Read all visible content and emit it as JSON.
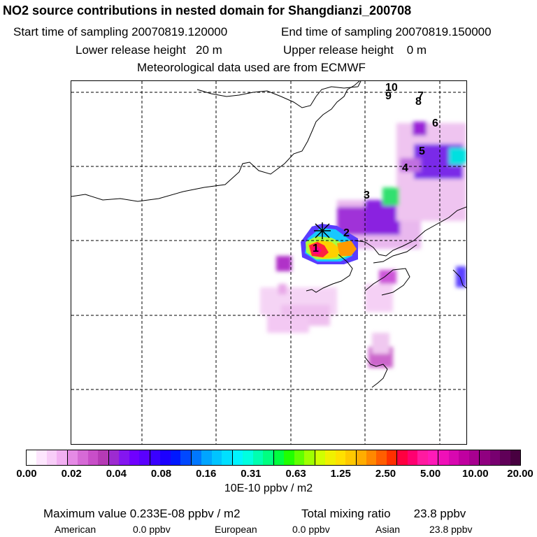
{
  "title": "NO2 source contributions in nested domain for Shangdianzi_200708",
  "sampling": {
    "start": "Start time of sampling 20070819.120000",
    "end": "End time of sampling 20070819.150000"
  },
  "release": {
    "lower": "Lower release height   20 m",
    "upper": "Upper release height    0 m"
  },
  "met": "Meteorological data used are from ECMWF",
  "map": {
    "trajectory_labels": [
      "1",
      "2",
      "3",
      "4",
      "5",
      "6",
      "7",
      "8",
      "9",
      "10"
    ],
    "station_marker": "star-icon"
  },
  "colorbar": {
    "labels": [
      "0.00",
      "0.02",
      "0.04",
      "0.08",
      "0.16",
      "0.31",
      "0.63",
      "1.25",
      "2.50",
      "5.00",
      "10.00",
      "20.00"
    ],
    "colors": [
      "#ffffff",
      "#fde6fd",
      "#f8cdf8",
      "#f2b0f2",
      "#e58ae5",
      "#d66ad6",
      "#c84ec8",
      "#b53ab5",
      "#9d2bd0",
      "#8416f0",
      "#7000ff",
      "#5a00ff",
      "#3a00ff",
      "#1c00ff",
      "#0018ff",
      "#0048ff",
      "#0077ff",
      "#00a5ff",
      "#00c4ff",
      "#00e0ff",
      "#00f5ff",
      "#00ffe0",
      "#00ffb0",
      "#00ff80",
      "#00ff40",
      "#20ff00",
      "#60ff00",
      "#9fff00",
      "#d0ff00",
      "#f0f000",
      "#ffe000",
      "#ffc800",
      "#ffad00",
      "#ff8800",
      "#ff5e00",
      "#ff3000",
      "#ff0040",
      "#ff0070",
      "#ff1aa0",
      "#ff1ab8",
      "#f010b8",
      "#d808b0",
      "#c000a0",
      "#a80090",
      "#900080",
      "#780070",
      "#600058",
      "#480040"
    ],
    "unit": "10E-10 ppbv / m2"
  },
  "stats": {
    "max": "Maximum value  0.233E-08 ppbv / m2",
    "total": "Total mixing ratio       23.8 ppbv",
    "american_label": "American",
    "american_value": "0.0 ppbv",
    "european_label": "European",
    "european_value": "0.0 ppbv",
    "asian_label": "Asian",
    "asian_value": "23.8 ppbv"
  }
}
